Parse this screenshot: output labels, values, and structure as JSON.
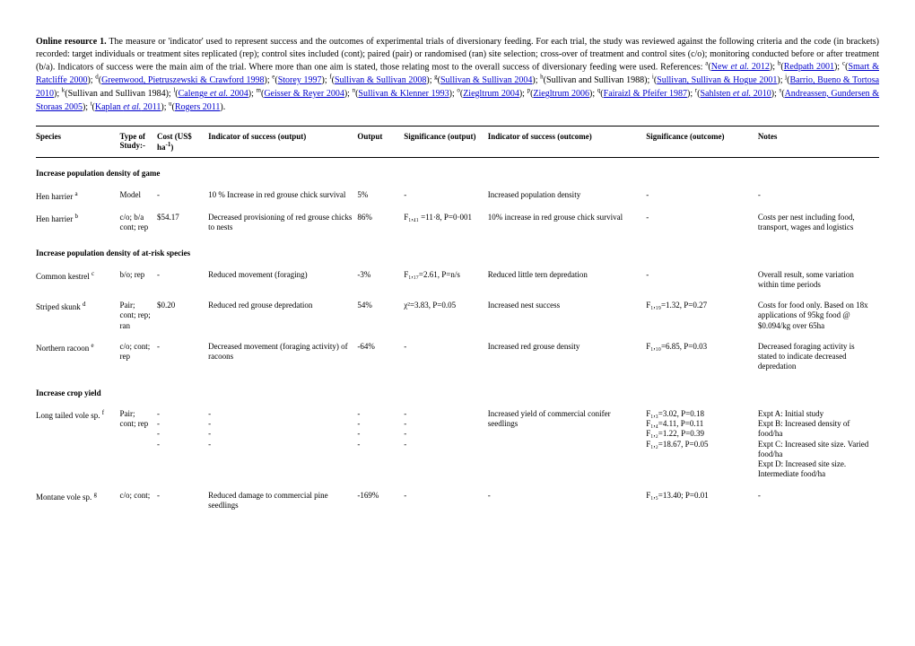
{
  "intro": {
    "title": "Online resource 1.",
    "body_pre": " The measure or 'indicator' used to represent success and the outcomes of experimental trials of diversionary feeding.  For each trial, the study was reviewed against the following criteria and the code (in brackets) recorded: target individuals or treatment sites replicated (rep); control sites included (cont); paired (pair) or randomised (ran) site selection; cross-over of treatment and control sites (c/o); monitoring conducted before or after treatment (b/a). Indicators of success were the main aim of the trial. Where more than one aim is stated, those relating most to the overall success of diversionary feeding were used. References: ",
    "refs": [
      {
        "sup": "a",
        "text": "New et al. 2012",
        "link": true,
        "ital": "et al."
      },
      {
        "sup": "b",
        "text": "Redpath 2001",
        "link": true
      },
      {
        "sup": "c",
        "text": "Smart & Ratcliffe 2000",
        "link": true
      },
      {
        "sup": "d",
        "text": "Greenwood, Pietruszewski & Crawford 1998",
        "link": true
      },
      {
        "sup": "e",
        "text": "Storey 1997",
        "link": true
      },
      {
        "sup": "f",
        "text": "Sullivan & Sullivan 2008",
        "link": true
      },
      {
        "sup": "g",
        "text": "Sullivan & Sullivan 2004",
        "link": true
      },
      {
        "sup": "h",
        "text": "Sullivan and Sullivan 1988",
        "link": false
      },
      {
        "sup": "i",
        "text": "Sullivan, Sullivan & Hogue 2001",
        "link": true
      },
      {
        "sup": "j",
        "text": "Barrio, Bueno & Tortosa 2010",
        "link": true
      },
      {
        "sup": "k",
        "text": "Sullivan and Sullivan 1984",
        "link": false
      },
      {
        "sup": "l",
        "text": "Calenge et al. 2004",
        "link": true,
        "ital": "et al."
      },
      {
        "sup": "m",
        "text": "Geisser & Reyer 2004",
        "link": true
      },
      {
        "sup": "n",
        "text": "Sullivan & Klenner 1993",
        "link": true
      },
      {
        "sup": "o",
        "text": "Ziegltrum 2004",
        "link": true
      },
      {
        "sup": "p",
        "text": "Ziegltrum 2006",
        "link": true
      },
      {
        "sup": "q",
        "text": "Fairaizl & Pfeifer 1987",
        "link": true
      },
      {
        "sup": "r",
        "text": "Sahlsten et al. 2010",
        "link": true,
        "ital": "et al."
      },
      {
        "sup": "s",
        "text": "Andreassen, Gundersen & Storaas 2005",
        "link": true
      },
      {
        "sup": "t",
        "text": "Kaplan et al. 2011",
        "link": true,
        "ital": "et al."
      },
      {
        "sup": "u",
        "text": "Rogers 2011",
        "link": true
      }
    ]
  },
  "headers": {
    "species": "Species",
    "type": "Type of Study:-",
    "cost": "Cost (US$ ha⁻¹)",
    "ind_out": "Indicator of success (output)",
    "output": "Output",
    "sig_out": "Significance (output)",
    "ind_oc": "Indicator of success (outcome)",
    "sig_oc": "Significance (outcome)",
    "notes": "Notes"
  },
  "sections": [
    {
      "title": "Increase population density of game",
      "rows": [
        {
          "species": "Hen harrier",
          "sup": "a",
          "type": "Model",
          "cost": "-",
          "ind_out": "10 % Increase in red grouse chick survival",
          "output": "5%",
          "sig_out": "-",
          "ind_oc": "Increased population density",
          "sig_oc": "-",
          "notes": "-"
        },
        {
          "species": "Hen harrier",
          "sup": "b",
          "type": "c/o; b/a cont; rep",
          "cost": "$54.17",
          "ind_out": "Decreased provisioning of red grouse chicks to nests",
          "output": "86%",
          "sig_out": "F₁,₄₁ =11·8, P=0·001",
          "ind_oc": "10% increase in red grouse chick survival",
          "sig_oc": "-",
          "notes": "Costs per nest including food, transport, wages and logistics"
        }
      ]
    },
    {
      "title": "Increase population density of at-risk species",
      "rows": [
        {
          "species": "Common kestrel",
          "sup": "c",
          "type": "b/o; rep",
          "cost": "-",
          "ind_out": "Reduced movement (foraging)",
          "output": "-3%",
          "sig_out": "F₁,₁₇=2.61, P=n/s",
          "ind_oc": "Reduced little tern depredation",
          "sig_oc": "-",
          "notes": "Overall result, some variation within time periods"
        },
        {
          "species": "Striped skunk",
          "sup": "d",
          "type": "Pair; cont; rep; ran",
          "cost": "$0.20",
          "ind_out": "Reduced red grouse depredation",
          "output": "54%",
          "sig_out": "χ²=3.83, P=0.05",
          "ind_oc": "Increased nest success",
          "sig_oc": "F₁,₁₉=1.32, P=0.27",
          "notes": "Costs for food only. Based on 18x applications of 95kg food @ $0.094/kg over 65ha"
        },
        {
          "species": "Northern racoon",
          "sup": "e",
          "type": "c/o; cont; rep",
          "cost": "-",
          "ind_out": "Decreased movement (foraging activity) of racoons",
          "output": "-64%",
          "sig_out": "-",
          "ind_oc": "Increased red grouse density",
          "sig_oc": "F₁,₁₀=6.85, P=0.03",
          "notes": "Decreased foraging activity is stated to indicate decreased depredation"
        }
      ]
    },
    {
      "title": "Increase crop yield",
      "rows": [
        {
          "species": "Long tailed vole sp.",
          "sup": "f",
          "type": "Pair; cont; rep",
          "cost": "-\n-\n-\n-",
          "ind_out": "-\n-\n-\n-",
          "output": "-\n-\n-\n-",
          "sig_out": "-\n-\n-\n-",
          "ind_oc": "Increased yield of commercial conifer seedlings",
          "sig_oc": "F₁,₃=3.02, P=0.18\nF₁,₄=4.11, P=0.11\nF₁,₂=1.22, P=0.39\nF₁,₂=18.67, P=0.05",
          "notes": "Expt A: Initial study\nExpt B: Increased density of food/ha\nExpt C: Increased site size. Varied food/ha\nExpt D: Increased site size. Intermediate food/ha"
        },
        {
          "species": "Montane vole sp.",
          "sup": "g",
          "type": "c/o; cont;",
          "cost": "-",
          "ind_out": "Reduced damage to commercial pine seedlings",
          "output": "-169%",
          "sig_out": "-",
          "ind_oc": "-",
          "sig_oc": "F₁,₅=13.40; P=0.01",
          "notes": "-"
        }
      ]
    }
  ]
}
